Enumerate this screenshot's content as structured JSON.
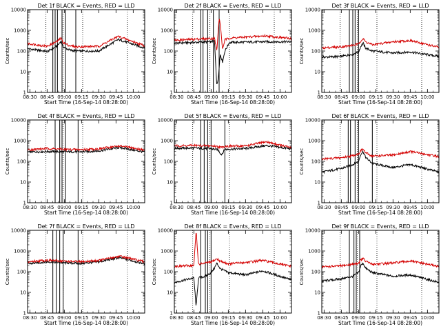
{
  "figure": {
    "event_color": "#000000",
    "lld_color": "#d40000"
  },
  "chart_data": [
    {
      "type": "line",
      "title": "Det 1f BLACK = Events, RED = LLD",
      "xlabel": "Start Time (16-Sep-14 08:28:00)",
      "ylabel": "Counts/sec",
      "x_range": [
        "08:28",
        "10:10"
      ],
      "ylim": [
        1,
        10000
      ],
      "y_scale": "log",
      "xticks": [
        "08:30",
        "08:45",
        "09:00",
        "09:15",
        "09:30",
        "09:45",
        "10:00"
      ],
      "yticks": [
        "1",
        "10",
        "100",
        "1000",
        "10000"
      ],
      "vertical_lines": [
        "08:50",
        "08:52",
        "08:54",
        "08:58",
        "09:01",
        "09:10"
      ],
      "dotted_lines": [
        "08:44",
        "08:59",
        "09:16",
        "09:55"
      ],
      "series": [
        {
          "x": [
            "08:28",
            "08:45",
            "08:50",
            "08:54",
            "08:57",
            "08:59",
            "09:02",
            "09:05",
            "09:10",
            "09:30",
            "09:47",
            "10:10"
          ],
          "values": [
            130,
            95,
            130,
            180,
            300,
            160,
            130,
            110,
            100,
            100,
            360,
            140
          ]
        },
        {
          "x": [
            "08:28",
            "08:45",
            "08:50",
            "08:54",
            "08:57",
            "08:59",
            "09:02",
            "09:05",
            "09:10",
            "09:30",
            "09:47",
            "10:10"
          ],
          "values": [
            230,
            170,
            230,
            300,
            420,
            260,
            210,
            180,
            160,
            170,
            510,
            180
          ]
        }
      ]
    },
    {
      "type": "line",
      "title": "Det 2f BLACK = Events, RED = LLD",
      "xlabel": "Start Time (16-Sep-14 08:28:00)",
      "ylabel": "Counts/sec",
      "x_range": [
        "08:28",
        "10:10"
      ],
      "ylim": [
        1,
        10000
      ],
      "y_scale": "log",
      "xticks": [
        "08:30",
        "08:45",
        "09:00",
        "09:15",
        "09:30",
        "09:45",
        "10:00"
      ],
      "yticks": [
        "1",
        "10",
        "100",
        "1000",
        "10000"
      ],
      "vertical_lines": [
        "08:51",
        "08:53",
        "08:57",
        "09:02",
        "09:07"
      ],
      "dotted_lines": [
        "08:44",
        "08:59",
        "09:16",
        "09:55"
      ],
      "series": [
        {
          "x": [
            "08:28",
            "08:45",
            "09:00",
            "09:03",
            "09:05",
            "09:06",
            "09:07",
            "09:08",
            "09:10",
            "09:12",
            "09:16",
            "09:47",
            "10:10"
          ],
          "values": [
            240,
            260,
            280,
            300,
            2,
            4,
            15,
            70,
            30,
            100,
            260,
            280,
            280
          ]
        },
        {
          "x": [
            "08:28",
            "08:45",
            "09:00",
            "09:03",
            "09:05",
            "09:06",
            "09:07",
            "09:08",
            "09:10",
            "09:12",
            "09:16",
            "09:47",
            "10:10"
          ],
          "values": [
            330,
            370,
            400,
            420,
            100,
            600,
            4000,
            2000,
            120,
            350,
            420,
            540,
            400
          ]
        }
      ]
    },
    {
      "type": "line",
      "title": "Det 3f BLACK = Events, RED = LLD",
      "xlabel": "Start Time (16-Sep-14 08:28:00)",
      "ylabel": "Counts/sec",
      "x_range": [
        "08:28",
        "10:10"
      ],
      "ylim": [
        1,
        10000
      ],
      "y_scale": "log",
      "xticks": [
        "08:30",
        "08:45",
        "09:00",
        "09:15",
        "09:30",
        "09:45",
        "10:00"
      ],
      "yticks": [
        "1",
        "10",
        "100",
        "1000",
        "10000"
      ],
      "vertical_lines": [
        "08:52",
        "08:55",
        "08:57",
        "09:00"
      ],
      "dotted_lines": [
        "08:44",
        "08:59",
        "09:16",
        "09:55"
      ],
      "series": [
        {
          "x": [
            "08:28",
            "08:45",
            "08:55",
            "09:00",
            "09:02",
            "09:04",
            "09:06",
            "09:12",
            "09:30",
            "09:45",
            "10:10"
          ],
          "values": [
            50,
            55,
            70,
            90,
            170,
            240,
            140,
            100,
            80,
            90,
            55
          ]
        },
        {
          "x": [
            "08:28",
            "08:45",
            "08:55",
            "09:00",
            "09:02",
            "09:04",
            "09:06",
            "09:12",
            "09:30",
            "09:45",
            "10:10"
          ],
          "values": [
            140,
            160,
            190,
            220,
            320,
            400,
            280,
            200,
            280,
            320,
            150
          ]
        }
      ]
    },
    {
      "type": "line",
      "title": "Det 4f BLACK = Events, RED = LLD",
      "xlabel": "Start Time (16-Sep-14 08:28:00)",
      "ylabel": "Counts/sec",
      "x_range": [
        "08:28",
        "10:10"
      ],
      "ylim": [
        1,
        10000
      ],
      "y_scale": "log",
      "xticks": [
        "08:30",
        "08:45",
        "09:00",
        "09:15",
        "09:30",
        "09:45",
        "10:00"
      ],
      "yticks": [
        "1",
        "10",
        "100",
        "1000",
        "10000"
      ],
      "vertical_lines": [
        "08:52",
        "08:56",
        "08:58",
        "09:01",
        "09:12"
      ],
      "dotted_lines": [
        "08:44",
        "08:59",
        "09:16",
        "09:55"
      ],
      "series": [
        {
          "x": [
            "08:28",
            "08:45",
            "09:00",
            "09:15",
            "09:30",
            "09:48",
            "10:10"
          ],
          "values": [
            280,
            300,
            290,
            290,
            320,
            470,
            280
          ]
        },
        {
          "x": [
            "08:28",
            "08:45",
            "09:00",
            "09:15",
            "09:30",
            "09:48",
            "10:10"
          ],
          "values": [
            360,
            420,
            380,
            370,
            400,
            560,
            350
          ]
        }
      ]
    },
    {
      "type": "line",
      "title": "Det 5f BLACK = Events, RED = LLD",
      "xlabel": "Start Time (16-Sep-14 08:28:00)",
      "ylabel": "Counts/sec",
      "x_range": [
        "08:28",
        "10:10"
      ],
      "ylim": [
        1,
        10000
      ],
      "y_scale": "log",
      "xticks": [
        "08:30",
        "08:45",
        "09:00",
        "09:15",
        "09:30",
        "09:45",
        "10:00"
      ],
      "yticks": [
        "1",
        "10",
        "100",
        "1000",
        "10000"
      ],
      "vertical_lines": [
        "08:51",
        "08:54",
        "08:57",
        "09:00",
        "09:12"
      ],
      "dotted_lines": [
        "08:44",
        "08:59",
        "09:16",
        "09:55"
      ],
      "series": [
        {
          "x": [
            "08:28",
            "08:45",
            "09:00",
            "09:06",
            "09:09",
            "09:12",
            "09:30",
            "09:48",
            "10:10"
          ],
          "values": [
            430,
            440,
            410,
            360,
            210,
            380,
            420,
            580,
            400
          ]
        },
        {
          "x": [
            "08:28",
            "08:45",
            "09:00",
            "09:06",
            "09:09",
            "09:12",
            "09:30",
            "09:48",
            "10:10"
          ],
          "values": [
            560,
            590,
            560,
            520,
            470,
            540,
            560,
            880,
            450
          ]
        }
      ]
    },
    {
      "type": "line",
      "title": "Det 6f BLACK = Events, RED = LLD",
      "xlabel": "Start Time (16-Sep-14 08:28:00)",
      "ylabel": "Counts/sec",
      "x_range": [
        "08:28",
        "10:10"
      ],
      "ylim": [
        1,
        10000
      ],
      "y_scale": "log",
      "xticks": [
        "08:30",
        "08:45",
        "09:00",
        "09:15",
        "09:30",
        "09:45",
        "10:00"
      ],
      "yticks": [
        "1",
        "10",
        "100",
        "1000",
        "10000"
      ],
      "vertical_lines": [
        "08:51",
        "08:53",
        "08:57",
        "09:00",
        "09:12"
      ],
      "dotted_lines": [
        "08:44",
        "08:59",
        "09:16",
        "09:55"
      ],
      "series": [
        {
          "x": [
            "08:28",
            "08:45",
            "08:55",
            "09:00",
            "09:02",
            "09:04",
            "09:06",
            "09:12",
            "09:30",
            "09:45",
            "10:10"
          ],
          "values": [
            30,
            45,
            70,
            100,
            230,
            300,
            160,
            80,
            50,
            70,
            30
          ]
        },
        {
          "x": [
            "08:28",
            "08:45",
            "08:55",
            "09:00",
            "09:02",
            "09:04",
            "09:06",
            "09:12",
            "09:30",
            "09:45",
            "10:10"
          ],
          "values": [
            130,
            150,
            190,
            230,
            330,
            390,
            260,
            180,
            200,
            300,
            170
          ]
        }
      ]
    },
    {
      "type": "line",
      "title": "Det 7f BLACK = Events, RED = LLD",
      "xlabel": "Start Time (16-Sep-14 08:28:00)",
      "ylabel": "Counts/sec",
      "x_range": [
        "08:28",
        "10:10"
      ],
      "ylim": [
        1,
        10000
      ],
      "y_scale": "log",
      "xticks": [
        "08:30",
        "08:45",
        "09:00",
        "09:15",
        "09:30",
        "09:45",
        "10:00"
      ],
      "yticks": [
        "1",
        "10",
        "100",
        "1000",
        "10000"
      ],
      "vertical_lines": [
        "08:50",
        "08:53",
        "08:56",
        "08:59",
        "09:12"
      ],
      "dotted_lines": [
        "08:44",
        "08:59",
        "09:16",
        "09:55"
      ],
      "series": [
        {
          "x": [
            "08:28",
            "08:45",
            "09:00",
            "09:15",
            "09:30",
            "09:48",
            "10:10"
          ],
          "values": [
            240,
            300,
            270,
            250,
            300,
            480,
            240
          ]
        },
        {
          "x": [
            "08:28",
            "08:45",
            "09:00",
            "09:15",
            "09:30",
            "09:48",
            "10:10"
          ],
          "values": [
            300,
            360,
            320,
            300,
            350,
            560,
            300
          ]
        }
      ]
    },
    {
      "type": "line",
      "title": "Det 8f BLACK = Events, RED = LLD",
      "xlabel": "Start Time (16-Sep-14 08:28:00)",
      "ylabel": "Counts/sec",
      "x_range": [
        "08:28",
        "10:10"
      ],
      "ylim": [
        1,
        10000
      ],
      "y_scale": "log",
      "xticks": [
        "08:30",
        "08:45",
        "09:00",
        "09:15",
        "09:30",
        "09:45",
        "10:00"
      ],
      "yticks": [
        "1",
        "10",
        "100",
        "1000",
        "10000"
      ],
      "vertical_lines": [
        "08:51",
        "08:55",
        "08:57",
        "09:00"
      ],
      "dotted_lines": [
        "08:44",
        "08:59",
        "09:16",
        "09:55"
      ],
      "series": [
        {
          "x": [
            "08:28",
            "08:45",
            "08:47",
            "08:49",
            "08:55",
            "09:00",
            "09:03",
            "09:05",
            "09:08",
            "09:15",
            "09:30",
            "09:45",
            "10:10"
          ],
          "values": [
            30,
            50,
            2,
            50,
            60,
            90,
            150,
            260,
            140,
            90,
            70,
            110,
            40
          ]
        },
        {
          "x": [
            "08:28",
            "08:45",
            "08:47",
            "08:49",
            "08:55",
            "09:00",
            "09:03",
            "09:05",
            "09:08",
            "09:15",
            "09:30",
            "09:45",
            "10:10"
          ],
          "values": [
            180,
            200,
            10000,
            230,
            260,
            290,
            360,
            420,
            320,
            240,
            280,
            350,
            180
          ]
        }
      ]
    },
    {
      "type": "line",
      "title": "Det 9f BLACK = Events, RED = LLD",
      "xlabel": "Start Time (16-Sep-14 08:28:00)",
      "ylabel": "Counts/sec",
      "x_range": [
        "08:28",
        "10:10"
      ],
      "ylim": [
        1,
        10000
      ],
      "y_scale": "log",
      "xticks": [
        "08:30",
        "08:45",
        "09:00",
        "09:15",
        "09:30",
        "09:45",
        "10:00"
      ],
      "yticks": [
        "1",
        "10",
        "100",
        "1000",
        "10000"
      ],
      "vertical_lines": [
        "08:52",
        "08:56",
        "08:58",
        "09:01"
      ],
      "dotted_lines": [
        "08:44",
        "08:59",
        "09:16",
        "09:55"
      ],
      "series": [
        {
          "x": [
            "08:28",
            "08:45",
            "08:55",
            "09:00",
            "09:02",
            "09:04",
            "09:06",
            "09:12",
            "09:30",
            "09:45",
            "10:10"
          ],
          "values": [
            35,
            45,
            60,
            90,
            200,
            260,
            150,
            90,
            60,
            70,
            30
          ]
        },
        {
          "x": [
            "08:28",
            "08:45",
            "08:55",
            "09:00",
            "09:02",
            "09:04",
            "09:06",
            "09:12",
            "09:30",
            "09:45",
            "10:10"
          ],
          "values": [
            170,
            190,
            230,
            260,
            380,
            440,
            320,
            230,
            260,
            330,
            180
          ]
        }
      ]
    }
  ]
}
